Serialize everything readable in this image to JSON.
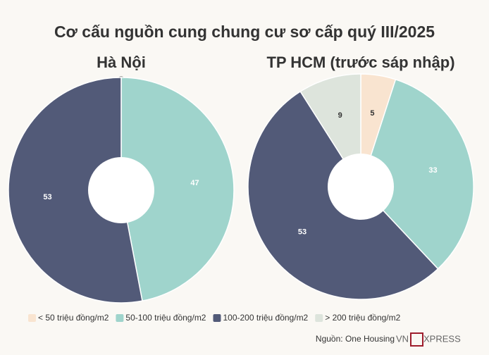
{
  "title": "Cơ cấu nguồn cung chung cư sơ cấp quý III/2025",
  "source": "Nguồn: One Housing",
  "brand": {
    "left": "VN",
    "right": "XPRESS"
  },
  "chart_data": [
    {
      "type": "pie",
      "title": "Hà Nội",
      "categories": [
        "< 50 triệu đồng/m2",
        "50-100 triệu đồng/m2",
        "100-200 triệu đồng/m2"
      ],
      "values": [
        0,
        47,
        53
      ],
      "colors": [
        "#f9e4d0",
        "#9fd4cc",
        "#525a78"
      ]
    },
    {
      "type": "pie",
      "title": "TP HCM (trước sáp nhập)",
      "categories": [
        "< 50 triệu đồng/m2",
        "50-100 triệu đồng/m2",
        "100-200 triệu đồng/m2",
        "> 200 triệu đồng/m2"
      ],
      "values": [
        5,
        33,
        53,
        9
      ],
      "colors": [
        "#f9e4d0",
        "#9fd4cc",
        "#525a78",
        "#dde4dc"
      ],
      "legend": "bottom"
    }
  ]
}
